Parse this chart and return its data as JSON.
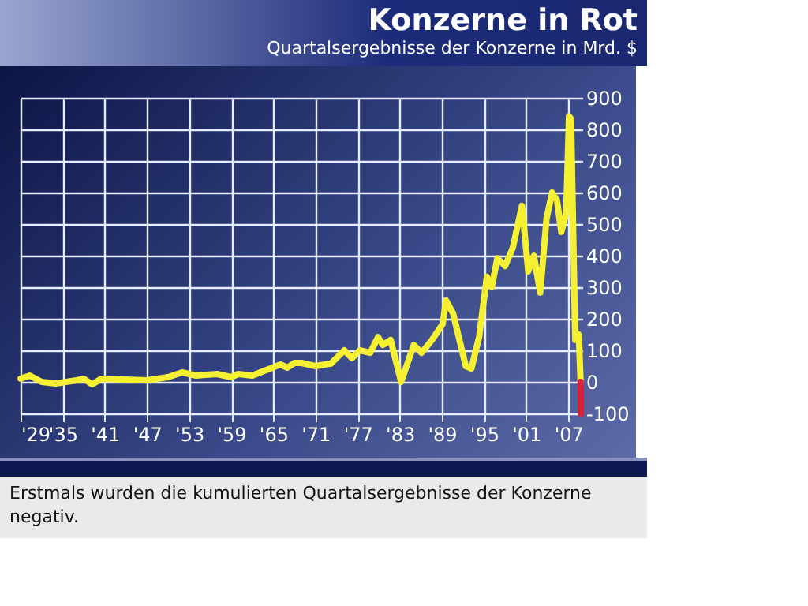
{
  "chart_data": {
    "type": "line",
    "title": "Konzerne in Rot",
    "subtitle": "Quartalsergebnisse der Konzerne in Mrd. $",
    "annotations": [
      "Erstmals wurden die kumulierten Quartalsergebnisse der Konzerne negativ."
    ],
    "series": [
      {
        "color": "#f5f032",
        "x": [
          1929,
          1930.3,
          1932,
          1934,
          1937,
          1938,
          1939.2,
          1940.5,
          1947,
          1950,
          1952,
          1954,
          1957,
          1959,
          1960,
          1962,
          1966,
          1967,
          1968,
          1969,
          1971,
          1973.2,
          1975.1,
          1976.2,
          1977.3,
          1978.8,
          1979.9,
          1980.6,
          1981.7,
          1983.2,
          1985,
          1986.1,
          1987.6,
          1989.1,
          1989.6,
          1990.6,
          1992.4,
          1993.2,
          1994.3,
          1995.4,
          1996.1,
          1996.9,
          1998,
          1999.1,
          2000.4,
          2001.3,
          2002.1,
          2003,
          2003.9,
          2004.7,
          2005.4,
          2006,
          2006.7,
          2007.1,
          2007.4,
          2007.9,
          2008,
          2008.5,
          2008.75
        ],
        "values": [
          10,
          20,
          0,
          -5,
          5,
          10,
          -8,
          10,
          5,
          15,
          30,
          20,
          25,
          15,
          25,
          20,
          55,
          45,
          60,
          60,
          50,
          58,
          100,
          75,
          100,
          92,
          142,
          117,
          133,
          0,
          117,
          92,
          133,
          183,
          258,
          217,
          50,
          42,
          142,
          333,
          300,
          392,
          367,
          425,
          558,
          350,
          400,
          283,
          517,
          600,
          575,
          475,
          533,
          842,
          833,
          233,
          133,
          150,
          0
        ]
      },
      {
        "color": "#d8203a",
        "x": [
          2008.75,
          2008.8
        ],
        "values": [
          0,
          -100
        ]
      }
    ],
    "xlim": [
      1929,
      2009
    ],
    "ylim": [
      -100,
      900
    ],
    "xticks": [
      {
        "value": 1929,
        "label": "'29"
      },
      {
        "value": 1935,
        "label": "'35"
      },
      {
        "value": 1941,
        "label": "'41"
      },
      {
        "value": 1947,
        "label": "'47"
      },
      {
        "value": 1953,
        "label": "'53"
      },
      {
        "value": 1959,
        "label": "'59"
      },
      {
        "value": 1965,
        "label": "'65"
      },
      {
        "value": 1971,
        "label": "'71"
      },
      {
        "value": 1977,
        "label": "'77"
      },
      {
        "value": 1983,
        "label": "'83"
      },
      {
        "value": 1989,
        "label": "'89"
      },
      {
        "value": 1995,
        "label": "'95"
      },
      {
        "value": 2001,
        "label": "'01"
      },
      {
        "value": 2007,
        "label": "'07"
      }
    ],
    "yticks": [
      -100,
      0,
      100,
      200,
      300,
      400,
      500,
      600,
      700,
      800,
      900
    ],
    "grid": true,
    "line_style": "solid"
  }
}
